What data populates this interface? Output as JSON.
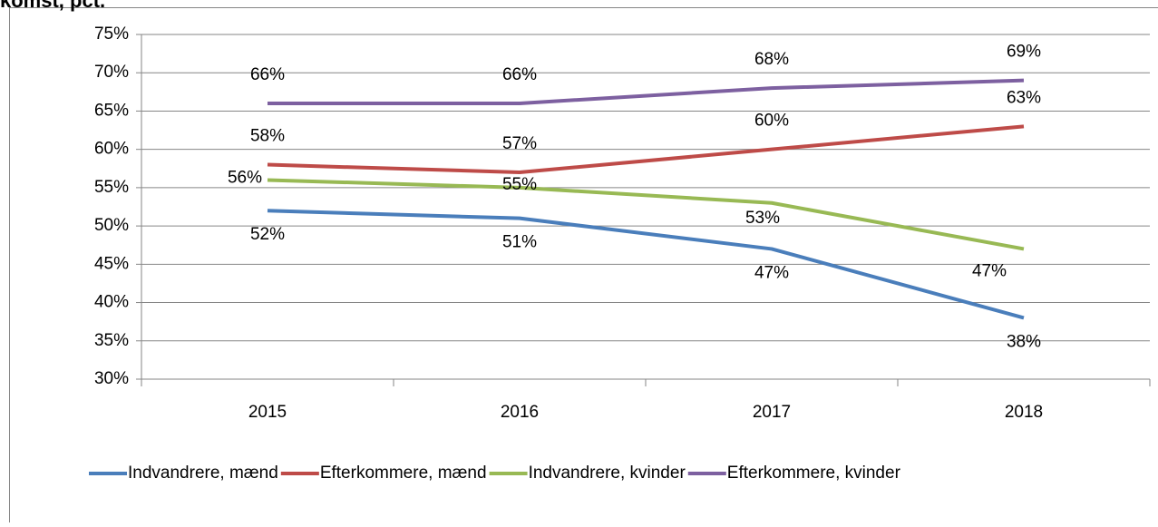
{
  "chart_data": {
    "type": "line",
    "title": "komst, pct.",
    "categories": [
      "2015",
      "2016",
      "2017",
      "2018"
    ],
    "series": [
      {
        "name": "Indvandrere, mænd",
        "color": "#4a7ebb",
        "values": [
          52,
          51,
          47,
          38
        ],
        "value_labels": [
          "52%",
          "51%",
          "47%",
          "38%"
        ]
      },
      {
        "name": "Efterkommere, mænd",
        "color": "#be4b48",
        "values": [
          58,
          57,
          60,
          63
        ],
        "value_labels": [
          "58%",
          "57%",
          "60%",
          "63%"
        ]
      },
      {
        "name": "Indvandrere, kvinder",
        "color": "#98b954",
        "values": [
          56,
          55,
          53,
          47
        ],
        "value_labels": [
          "56%",
          "55%",
          "53%",
          "47%"
        ]
      },
      {
        "name": "Efterkommere, kvinder",
        "color": "#7d60a0",
        "values": [
          66,
          66,
          68,
          69
        ],
        "value_labels": [
          "66%",
          "66%",
          "68%",
          "69%"
        ]
      }
    ],
    "ylim": [
      30,
      75
    ],
    "yticks": [
      {
        "value": 30,
        "label": "30%"
      },
      {
        "value": 35,
        "label": "35%"
      },
      {
        "value": 40,
        "label": "40%"
      },
      {
        "value": 45,
        "label": "45%"
      },
      {
        "value": 50,
        "label": "50%"
      },
      {
        "value": 55,
        "label": "55%"
      },
      {
        "value": 60,
        "label": "60%"
      },
      {
        "value": 65,
        "label": "65%"
      },
      {
        "value": 70,
        "label": "70%"
      },
      {
        "value": 75,
        "label": "75%"
      }
    ],
    "grid": true,
    "legend": "bottom"
  }
}
